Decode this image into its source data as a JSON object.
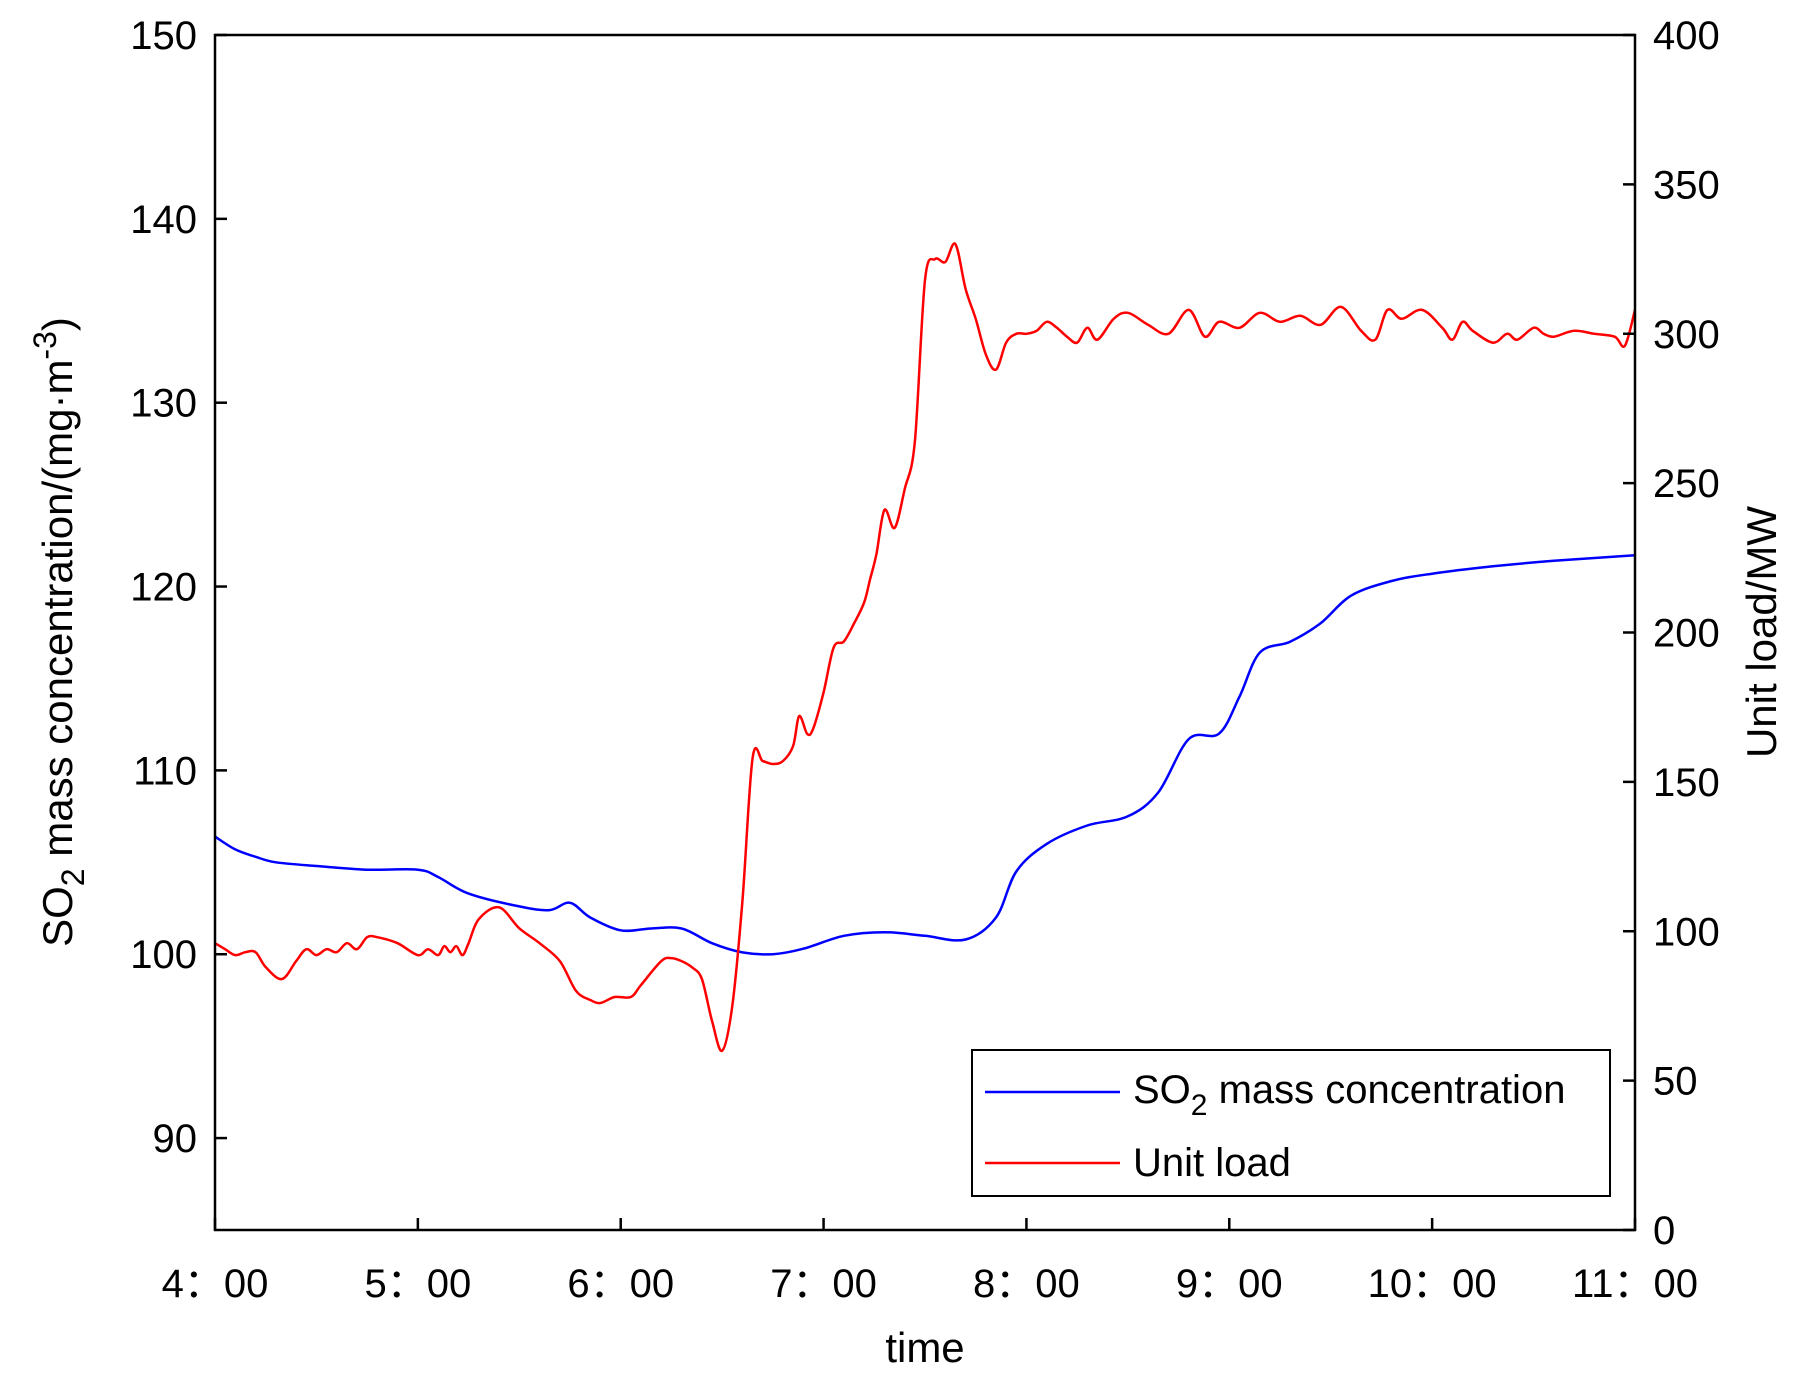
{
  "chart_data": {
    "type": "line",
    "xlabel": "time",
    "ylabel_left": {
      "main": "SO",
      "sub": "2",
      "rest": " mass concentration/(mg·m",
      "sup": "-3",
      "end": ")"
    },
    "ylabel_right": "Unit load/MW",
    "x_ticks": [
      "4：00",
      "5：00",
      "6：00",
      "7：00",
      "8：00",
      "9：00",
      "10：00",
      "11：00"
    ],
    "xlim": [
      4,
      11
    ],
    "ylim_left": [
      85,
      150
    ],
    "yticks_left": [
      "90",
      "100",
      "110",
      "120",
      "130",
      "140",
      "150"
    ],
    "ylim_right": [
      0,
      400
    ],
    "yticks_right": [
      "0",
      "50",
      "100",
      "150",
      "200",
      "250",
      "300",
      "350",
      "400"
    ],
    "legend_position": "bottom-right",
    "legend": [
      {
        "main": "SO",
        "sub": "2",
        "rest": " mass concentration",
        "color": "#0000ff"
      },
      {
        "main": "Unit load",
        "sub": "",
        "rest": "",
        "color": "#ff0000"
      }
    ],
    "series": [
      {
        "axis": "left",
        "color": "#0000ff",
        "x": [
          4.0,
          4.1,
          4.2,
          4.3,
          4.5,
          4.75,
          5.0,
          5.1,
          5.25,
          5.5,
          5.65,
          5.75,
          5.85,
          6.0,
          6.15,
          6.3,
          6.45,
          6.6,
          6.75,
          6.9,
          7.1,
          7.3,
          7.5,
          7.7,
          7.85,
          7.95,
          8.1,
          8.3,
          8.5,
          8.65,
          8.8,
          8.95,
          9.05,
          9.15,
          9.3,
          9.45,
          9.6,
          9.8,
          10.0,
          10.3,
          10.6,
          11.0
        ],
        "y": [
          106.4,
          105.7,
          105.3,
          105.0,
          104.8,
          104.6,
          104.6,
          104.2,
          103.3,
          102.6,
          102.4,
          102.8,
          102.0,
          101.3,
          101.4,
          101.4,
          100.6,
          100.1,
          100.0,
          100.3,
          101.0,
          101.2,
          101.0,
          100.8,
          102.0,
          104.5,
          106.0,
          107.0,
          107.5,
          108.8,
          111.7,
          112.0,
          114.0,
          116.4,
          117.0,
          118.0,
          119.5,
          120.3,
          120.7,
          121.1,
          121.4,
          121.7
        ]
      },
      {
        "axis": "right",
        "color": "#ff0000",
        "x": [
          4.0,
          4.05,
          4.1,
          4.15,
          4.2,
          4.25,
          4.33,
          4.4,
          4.45,
          4.5,
          4.55,
          4.6,
          4.65,
          4.7,
          4.75,
          4.8,
          4.9,
          5.0,
          5.05,
          5.1,
          5.13,
          5.16,
          5.19,
          5.22,
          5.25,
          5.3,
          5.4,
          5.5,
          5.6,
          5.7,
          5.78,
          5.85,
          5.9,
          5.97,
          6.05,
          6.1,
          6.2,
          6.25,
          6.3,
          6.35,
          6.4,
          6.45,
          6.5,
          6.55,
          6.6,
          6.65,
          6.7,
          6.75,
          6.8,
          6.85,
          6.88,
          6.92,
          6.95,
          7.0,
          7.05,
          7.1,
          7.15,
          7.2,
          7.23,
          7.26,
          7.3,
          7.35,
          7.4,
          7.45,
          7.5,
          7.55,
          7.6,
          7.65,
          7.7,
          7.75,
          7.8,
          7.85,
          7.9,
          7.95,
          8.0,
          8.05,
          8.1,
          8.15,
          8.2,
          8.25,
          8.3,
          8.35,
          8.43,
          8.5,
          8.6,
          8.7,
          8.8,
          8.88,
          8.95,
          9.05,
          9.15,
          9.25,
          9.35,
          9.45,
          9.55,
          9.65,
          9.72,
          9.78,
          9.85,
          9.95,
          10.05,
          10.1,
          10.15,
          10.2,
          10.3,
          10.37,
          10.42,
          10.5,
          10.55,
          10.6,
          10.7,
          10.8,
          10.9,
          10.95,
          11.0
        ],
        "y": [
          96,
          94,
          92,
          93,
          93,
          88,
          84,
          90,
          94,
          92,
          94,
          93,
          96,
          94,
          98,
          98,
          96,
          92,
          94,
          92,
          95,
          93,
          95,
          92,
          96,
          104,
          108,
          101,
          96,
          90,
          80,
          77,
          76,
          78,
          78,
          82,
          90,
          91,
          90,
          88,
          84,
          70,
          60,
          75,
          110,
          158,
          157,
          156,
          157,
          162,
          172,
          166,
          168,
          180,
          195,
          197,
          203,
          210,
          218,
          226,
          241,
          235,
          248,
          264,
          318,
          325,
          324,
          330,
          315,
          305,
          293,
          288,
          297,
          300,
          300,
          301,
          304,
          302,
          299,
          297,
          302,
          298,
          305,
          307,
          303,
          300,
          308,
          299,
          304,
          302,
          307,
          304,
          306,
          303,
          309,
          301,
          298,
          308,
          305,
          308,
          302,
          298,
          304,
          301,
          297,
          300,
          298,
          302,
          300,
          299,
          301,
          300,
          299,
          296,
          308
        ]
      }
    ]
  }
}
